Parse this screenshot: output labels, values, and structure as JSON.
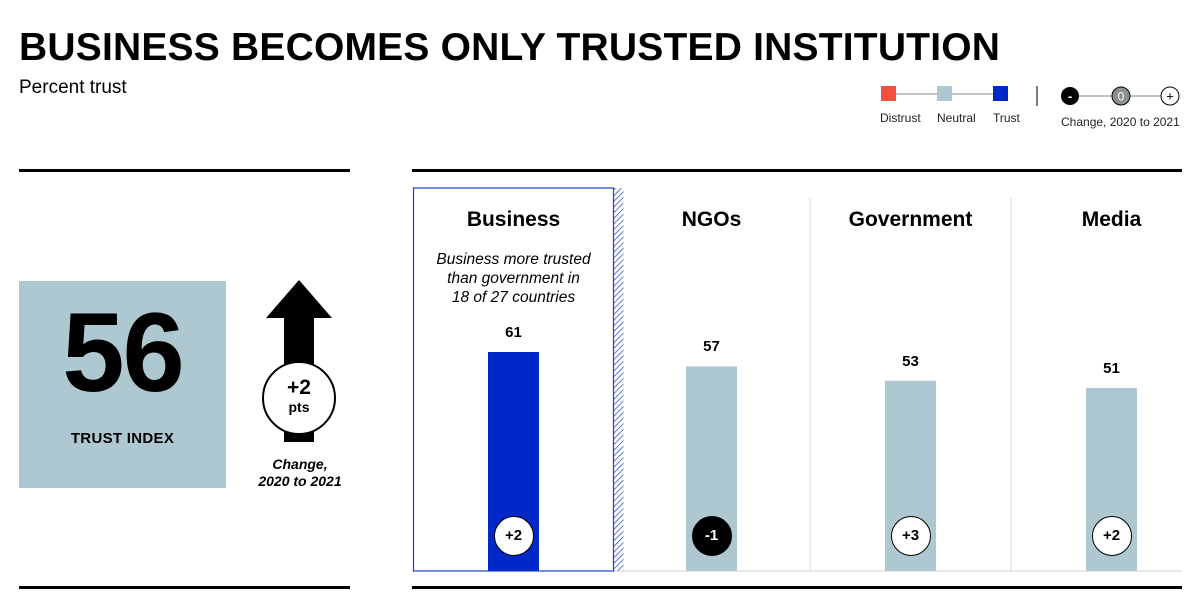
{
  "header": {
    "title": "BUSINESS BECOMES ONLY TRUSTED INSTITUTION",
    "subtitle": "Percent trust"
  },
  "legend": {
    "scale": [
      {
        "label": "Distrust",
        "color": "#f4503c"
      },
      {
        "label": "Neutral",
        "color": "#aec8d2"
      },
      {
        "label": "Trust",
        "color": "#0028c8"
      }
    ],
    "change": {
      "minus": "-",
      "zero": "0",
      "plus": "+",
      "label": "Change, 2020 to 2021"
    }
  },
  "trust_index": {
    "value": "56",
    "label": "TRUST INDEX",
    "change_delta": "+2",
    "change_unit": "pts",
    "change_caption_line1": "Change,",
    "change_caption_line2": "2020 to 2021"
  },
  "chart_data": {
    "type": "bar",
    "categories": [
      "Business",
      "NGOs",
      "Government",
      "Media"
    ],
    "values": [
      61,
      57,
      53,
      51
    ],
    "changes": [
      "+2",
      "-1",
      "+3",
      "+2"
    ],
    "bar_colors": [
      "#0028c8",
      "#aec8d2",
      "#aec8d2",
      "#aec8d2"
    ],
    "highlight_category": "Business",
    "annotation": {
      "category": "Business",
      "lines": [
        "Business more trusted",
        "than government in",
        "18 of 27 countries"
      ]
    },
    "ylim": [
      0,
      100
    ]
  }
}
